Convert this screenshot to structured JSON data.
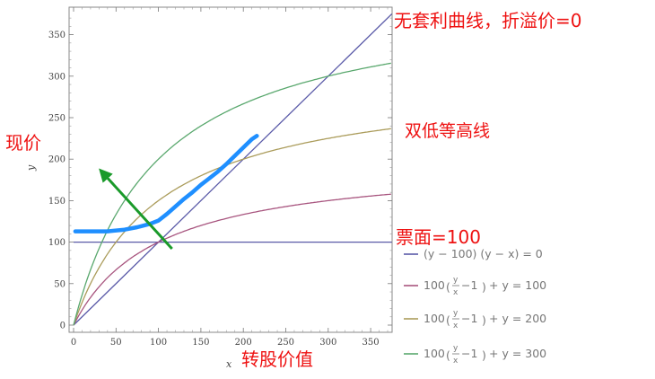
{
  "chart_data": {
    "type": "line",
    "xlabel": "x",
    "ylabel": "y",
    "xlim": [
      0,
      380
    ],
    "ylim": [
      0,
      380
    ],
    "xticks": [
      0,
      50,
      100,
      150,
      200,
      250,
      300,
      350
    ],
    "yticks": [
      0,
      50,
      100,
      150,
      200,
      250,
      300,
      350
    ],
    "series": [
      {
        "legend": "(y − 100) (y − x) = 0",
        "color": "#5a5aa8",
        "kind": "par-and-diagonal"
      },
      {
        "legend_k": "100",
        "legend_rhs": "+ y = 100",
        "k": 100,
        "color": "#a8557f"
      },
      {
        "legend_k": "100",
        "legend_rhs": "+ y = 200",
        "k": 200,
        "color": "#ab9c5b"
      },
      {
        "legend_k": "100",
        "legend_rhs": "+ y = 300",
        "k": 300,
        "color": "#5aa86e"
      }
    ],
    "legend_frac": {
      "num": "y",
      "den": "x",
      "minus": "−1"
    },
    "price_curve": {
      "color": "#1f8fff",
      "points": [
        [
          2,
          113
        ],
        [
          20,
          113
        ],
        [
          40,
          113
        ],
        [
          60,
          115
        ],
        [
          75,
          118
        ],
        [
          90,
          122
        ],
        [
          100,
          126
        ],
        [
          110,
          134
        ],
        [
          120,
          143
        ],
        [
          130,
          152
        ],
        [
          140,
          160
        ],
        [
          150,
          169
        ],
        [
          160,
          177
        ],
        [
          170,
          185
        ],
        [
          180,
          194
        ],
        [
          190,
          204
        ],
        [
          200,
          214
        ],
        [
          210,
          224
        ],
        [
          216,
          228
        ]
      ]
    },
    "arrow": {
      "color": "#1a9a2a",
      "from": [
        116,
        92
      ],
      "to": [
        34,
        184
      ]
    },
    "annotations": {
      "no_arb": "无套利曲线，折溢价=0",
      "iso_double_low": "双低等高线",
      "par": "票面=100",
      "current_price": "现价",
      "conv_value": "转股价值"
    }
  }
}
